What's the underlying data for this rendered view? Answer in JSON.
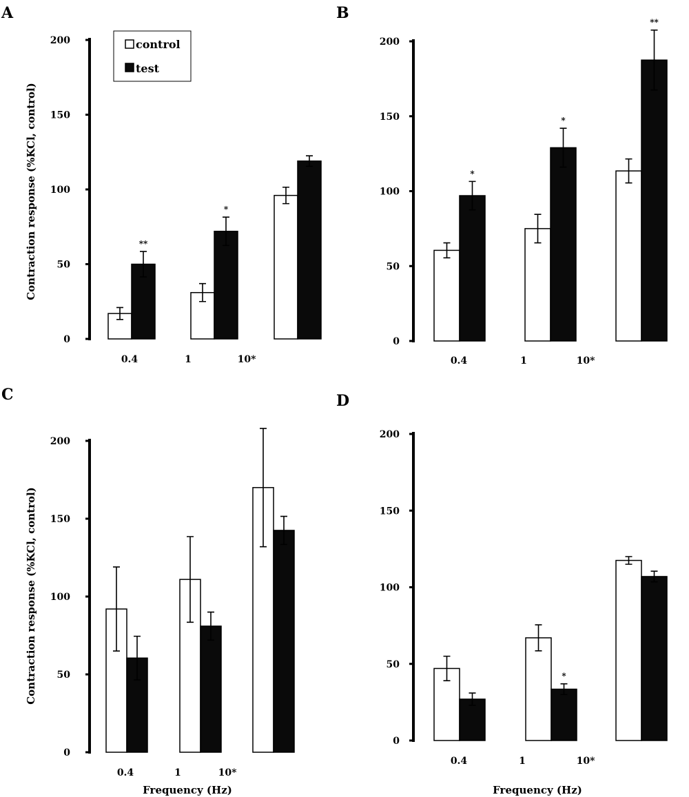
{
  "colors": {
    "control": "#ffffff",
    "test": "#0a0a0a",
    "axis": "#000000"
  },
  "chart_data": [
    {
      "panel": "A",
      "type": "bar",
      "ylim": [
        0,
        200
      ],
      "yticks": [
        0,
        50,
        100,
        150,
        200
      ],
      "ylabel": "Contraction response (%KCl, control)",
      "xlabel": "",
      "category_labels": [
        "0.4",
        "1",
        "10*"
      ],
      "legend": {
        "entries": [
          "control",
          "test"
        ],
        "placement": "top-left"
      },
      "series": [
        {
          "name": "control",
          "values": [
            17,
            31,
            96
          ],
          "errors": [
            4,
            6,
            5.5
          ]
        },
        {
          "name": "test",
          "values": [
            50,
            72,
            119
          ],
          "errors": [
            8.5,
            9.5,
            3.5
          ]
        }
      ],
      "significance": [
        [
          "",
          "**"
        ],
        [
          "",
          "*"
        ],
        [
          "",
          ""
        ]
      ]
    },
    {
      "panel": "B",
      "type": "bar",
      "ylim": [
        0,
        200
      ],
      "yticks": [
        0,
        50,
        100,
        150,
        200
      ],
      "ylabel": "",
      "xlabel": "",
      "category_labels": [
        "0.4",
        "1",
        "10*"
      ],
      "series": [
        {
          "name": "control",
          "values": [
            60.5,
            75,
            113.5
          ],
          "errors": [
            5,
            9.5,
            8
          ]
        },
        {
          "name": "test",
          "values": [
            97,
            129,
            187.5
          ],
          "errors": [
            9.5,
            13,
            20
          ]
        }
      ],
      "significance": [
        [
          "",
          "*"
        ],
        [
          "",
          "*"
        ],
        [
          "",
          "**"
        ]
      ]
    },
    {
      "panel": "C",
      "type": "bar",
      "ylim": [
        0,
        200
      ],
      "yticks": [
        0,
        50,
        100,
        150,
        200
      ],
      "ylabel": "Contraction response (%KCl, control)",
      "xlabel": "Frequency (Hz)",
      "category_labels": [
        "0.4",
        "1",
        "10*"
      ],
      "series": [
        {
          "name": "control",
          "values": [
            92,
            111,
            170
          ],
          "errors": [
            27,
            27.5,
            38
          ]
        },
        {
          "name": "test",
          "values": [
            60.5,
            81,
            142.5
          ],
          "errors": [
            14,
            9,
            9
          ]
        }
      ],
      "significance": [
        [
          "",
          ""
        ],
        [
          "",
          ""
        ],
        [
          "",
          ""
        ]
      ]
    },
    {
      "panel": "D",
      "type": "bar",
      "ylim": [
        0,
        200
      ],
      "yticks": [
        0,
        50,
        100,
        150,
        200
      ],
      "ylabel": "",
      "xlabel": "Frequency (Hz)",
      "category_labels": [
        "0.4",
        "1",
        "10*"
      ],
      "series": [
        {
          "name": "control",
          "values": [
            47,
            67,
            117.5
          ],
          "errors": [
            8,
            8.5,
            2.5
          ]
        },
        {
          "name": "test",
          "values": [
            27,
            33.5,
            107
          ],
          "errors": [
            4,
            3.5,
            3.5
          ]
        }
      ],
      "significance": [
        [
          "",
          ""
        ],
        [
          "",
          "*"
        ],
        [
          "",
          ""
        ]
      ]
    }
  ]
}
